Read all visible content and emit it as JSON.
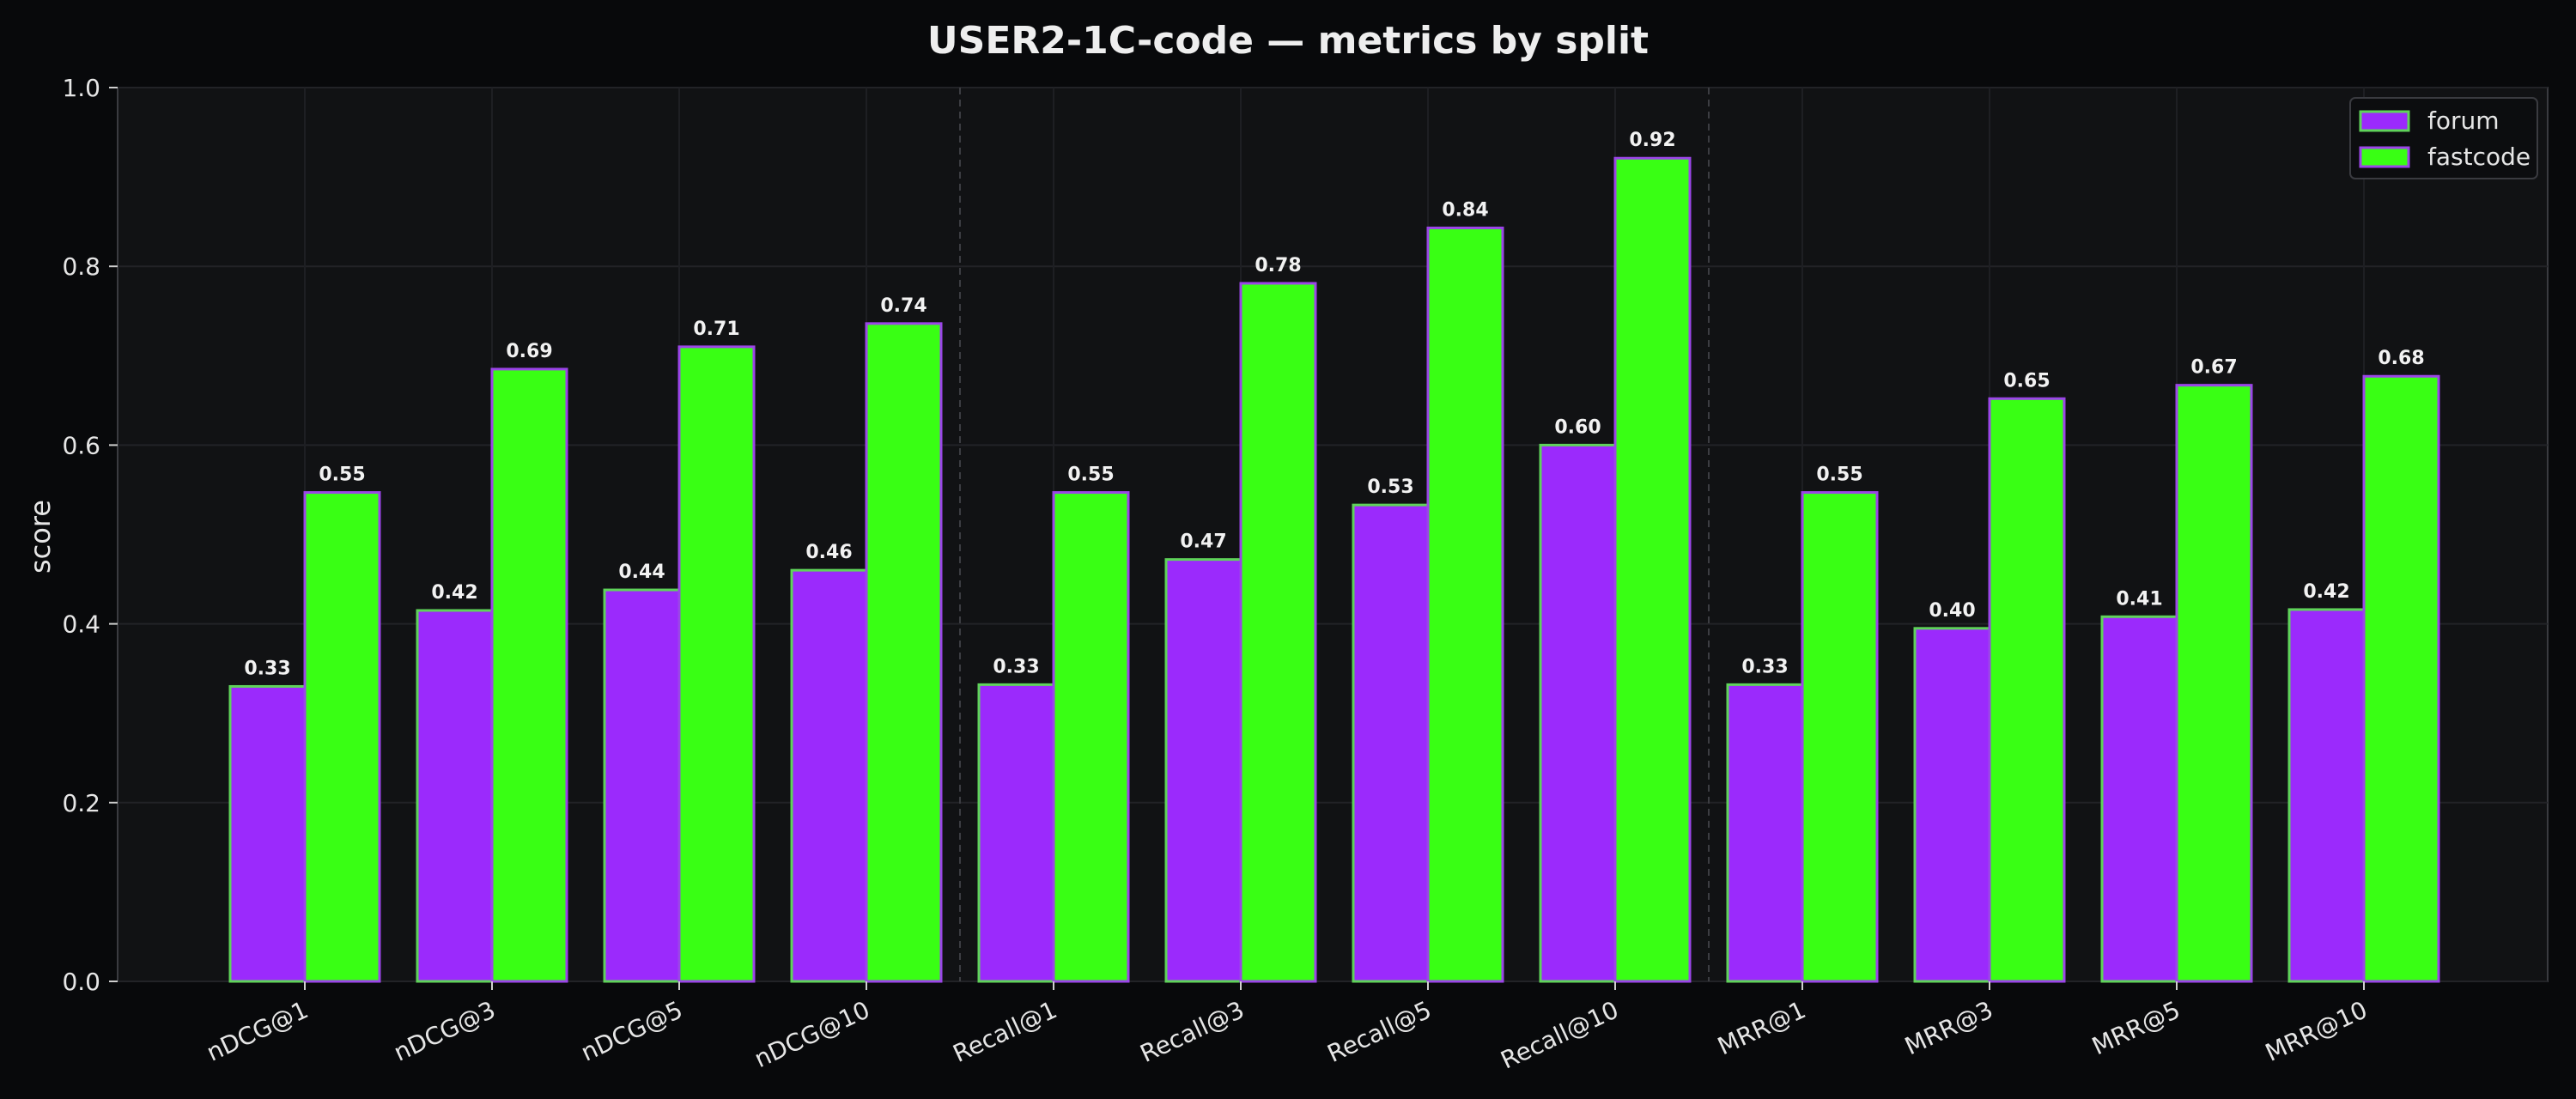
{
  "chart_data": {
    "type": "bar",
    "title": "USER2-1C-code — metrics by split",
    "xlabel": "",
    "ylabel": "score",
    "ylim": [
      0,
      1.0
    ],
    "yticks": [
      0.0,
      0.2,
      0.4,
      0.6,
      0.8,
      1.0
    ],
    "ytick_labels": [
      "0.0",
      "0.2",
      "0.4",
      "0.6",
      "0.8",
      "1.0"
    ],
    "grid": true,
    "legend_position": "top-right",
    "group_separators_after": [
      3,
      7
    ],
    "categories": [
      "nDCG@1",
      "nDCG@3",
      "nDCG@5",
      "nDCG@10",
      "Recall@1",
      "Recall@3",
      "Recall@5",
      "Recall@10",
      "MRR@1",
      "MRR@3",
      "MRR@5",
      "MRR@10"
    ],
    "series": [
      {
        "name": "forum",
        "color": "#9b2afc",
        "edge_color": "#5fd35a",
        "values": [
          0.33,
          0.415,
          0.438,
          0.46,
          0.332,
          0.472,
          0.533,
          0.6,
          0.332,
          0.395,
          0.408,
          0.416
        ],
        "labels": [
          "0.33",
          "0.42",
          "0.44",
          "0.46",
          "0.33",
          "0.47",
          "0.53",
          "0.60",
          "0.33",
          "0.40",
          "0.41",
          "0.42"
        ]
      },
      {
        "name": "fastcode",
        "color": "#39ff14",
        "edge_color": "#9b45e8",
        "values": [
          0.547,
          0.685,
          0.71,
          0.736,
          0.547,
          0.781,
          0.843,
          0.921,
          0.547,
          0.652,
          0.667,
          0.677
        ],
        "labels": [
          "0.55",
          "0.69",
          "0.71",
          "0.74",
          "0.55",
          "0.78",
          "0.84",
          "0.92",
          "0.55",
          "0.65",
          "0.67",
          "0.68"
        ]
      }
    ]
  }
}
